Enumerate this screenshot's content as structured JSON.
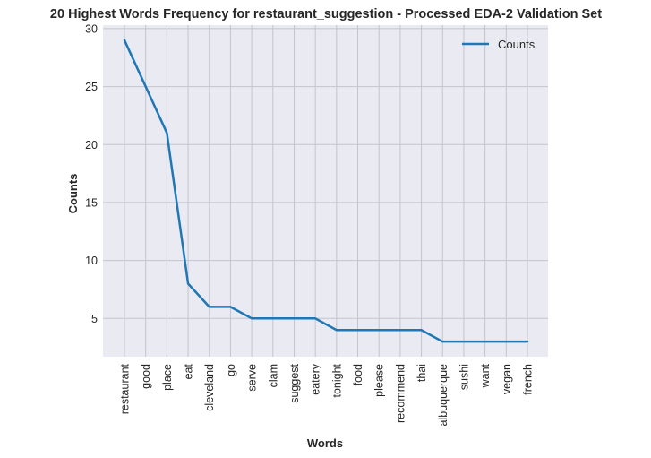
{
  "chart_data": {
    "type": "line",
    "title": "20 Highest Words Frequency for restaurant_suggestion - Processed EDA-2 Validation Set",
    "xlabel": "Words",
    "ylabel": "Counts",
    "categories": [
      "restaurant",
      "good",
      "place",
      "eat",
      "cleveland",
      "go",
      "serve",
      "clam",
      "suggest",
      "eatery",
      "tonight",
      "food",
      "please",
      "recommend",
      "thai",
      "albuquerque",
      "sushi",
      "want",
      "vegan",
      "french"
    ],
    "series": [
      {
        "name": "Counts",
        "color": "#1f77b4",
        "values": [
          29,
          25,
          21,
          8,
          6,
          6,
          5,
          5,
          5,
          5,
          4,
          4,
          4,
          4,
          4,
          3,
          3,
          3,
          3,
          3
        ]
      }
    ],
    "ylim": [
      1.7,
      30.3
    ],
    "yticks": [
      5,
      10,
      15,
      20,
      25,
      30
    ],
    "grid": true,
    "legend_position": "top-right",
    "background": "#eaeaf2",
    "grid_color": "#c4c4cc"
  }
}
